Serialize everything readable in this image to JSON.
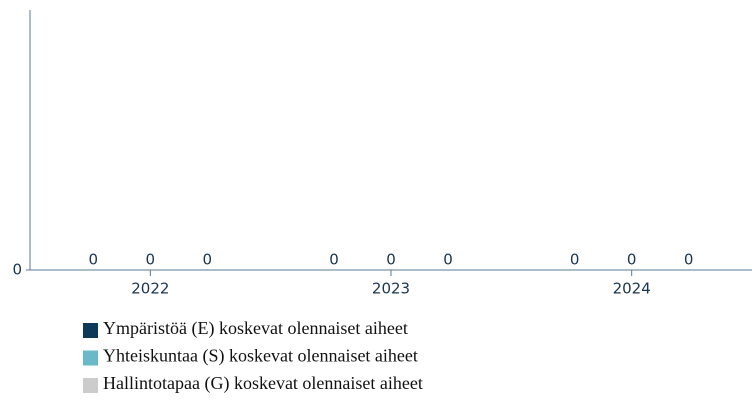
{
  "chart_data": {
    "type": "bar",
    "categories": [
      "2022",
      "2023",
      "2024"
    ],
    "series": [
      {
        "name": "Ympäristöä (E) koskevat olennaiset aiheet",
        "color": "#0e3a5a",
        "values": [
          0,
          0,
          0
        ]
      },
      {
        "name": "Yhteiskuntaa (S) koskevat olennaiset aiheet",
        "color": "#6ab9c9",
        "values": [
          0,
          0,
          0
        ]
      },
      {
        "name": "Hallintotapaa (G) koskevat olennaiset aiheet",
        "color": "#cccccc",
        "values": [
          0,
          0,
          0
        ]
      }
    ],
    "ylim": [
      0,
      1
    ],
    "yticks": [
      0
    ],
    "legend": "bottom"
  }
}
